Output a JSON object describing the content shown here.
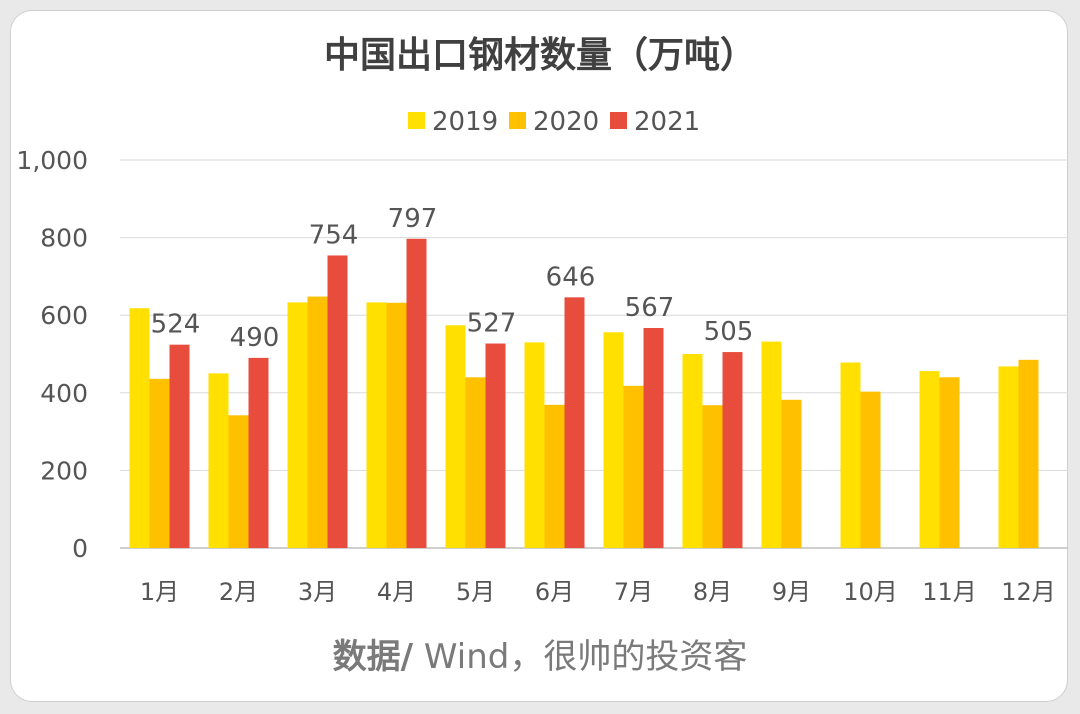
{
  "chart_data": {
    "type": "bar",
    "title": "中国出口钢材数量（万吨）",
    "categories": [
      "1月",
      "2月",
      "3月",
      "4月",
      "5月",
      "6月",
      "7月",
      "8月",
      "9月",
      "10月",
      "11月",
      "12月"
    ],
    "series": [
      {
        "name": "2019",
        "color": "#FFE000",
        "values": [
          618,
          450,
          633,
          633,
          574,
          530,
          556,
          500,
          532,
          478,
          456,
          468
        ]
      },
      {
        "name": "2020",
        "color": "#FFC000",
        "values": [
          436,
          342,
          648,
          632,
          440,
          369,
          418,
          368,
          382,
          403,
          440,
          485
        ]
      },
      {
        "name": "2021",
        "color": "#E74C3C",
        "values": [
          524,
          490,
          754,
          797,
          527,
          646,
          567,
          505,
          null,
          null,
          null,
          null
        ]
      }
    ],
    "labeled_series": "2021",
    "ylim": [
      0,
      1000
    ],
    "yticks": [
      0,
      200,
      400,
      600,
      800,
      1000
    ],
    "ytick_labels": [
      "0",
      "200",
      "400",
      "600",
      "800",
      "1,000"
    ],
    "xlabel": "",
    "ylabel": "",
    "grid": true,
    "legend_position": "top-center"
  },
  "source": {
    "bold": "数据/",
    "rest": " Wind，很帅的投资客"
  }
}
